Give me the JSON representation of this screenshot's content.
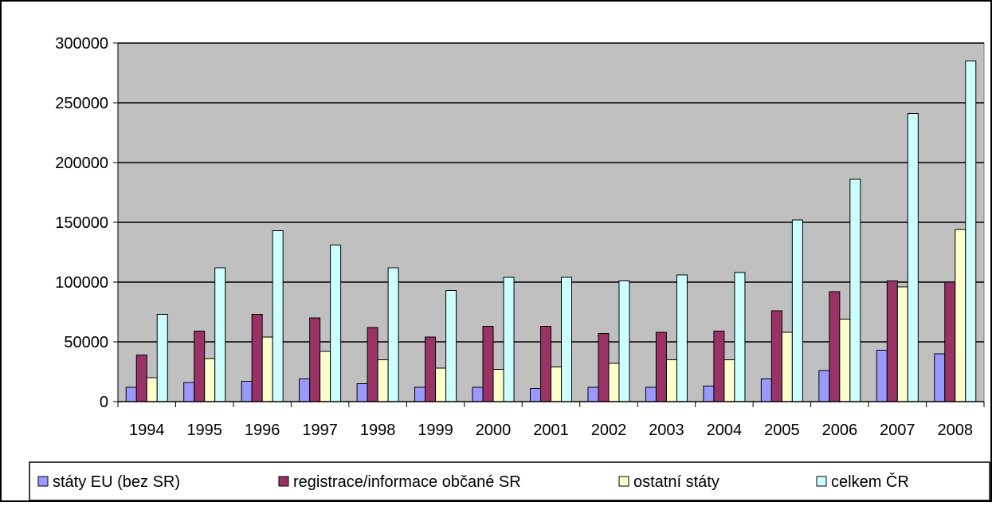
{
  "chart_data": {
    "type": "bar",
    "title": "",
    "xlabel": "",
    "ylabel": "",
    "categories": [
      "1994",
      "1995",
      "1996",
      "1997",
      "1998",
      "1999",
      "2000",
      "2001",
      "2002",
      "2003",
      "2004",
      "2005",
      "2006",
      "2007",
      "2008"
    ],
    "ylim": [
      0,
      300000
    ],
    "yticks": [
      "0",
      "50000",
      "100000",
      "150000",
      "200000",
      "250000",
      "300000"
    ],
    "grid": true,
    "legend_position": "bottom",
    "plot_background": "#c0c0c0",
    "series": [
      {
        "name": "státy EU (bez SR)",
        "color": "#9999ff",
        "values": [
          12000,
          16000,
          17000,
          19000,
          15000,
          12000,
          12000,
          11000,
          12000,
          12000,
          13000,
          19000,
          26000,
          43000,
          40000
        ]
      },
      {
        "name": "registrace/informace občané SR",
        "color": "#993366",
        "values": [
          39000,
          59000,
          73000,
          70000,
          62000,
          54000,
          63000,
          63000,
          57000,
          58000,
          59000,
          76000,
          92000,
          101000,
          100000
        ]
      },
      {
        "name": "ostatní státy",
        "color": "#ffffcc",
        "values": [
          20000,
          36000,
          54000,
          42000,
          35000,
          28000,
          27000,
          29000,
          32000,
          35000,
          35000,
          58000,
          69000,
          96000,
          144000
        ]
      },
      {
        "name": "celkem ČR",
        "color": "#ccffff",
        "values": [
          73000,
          112000,
          143000,
          131000,
          112000,
          93000,
          104000,
          104000,
          101000,
          106000,
          108000,
          152000,
          186000,
          241000,
          285000
        ]
      }
    ]
  }
}
